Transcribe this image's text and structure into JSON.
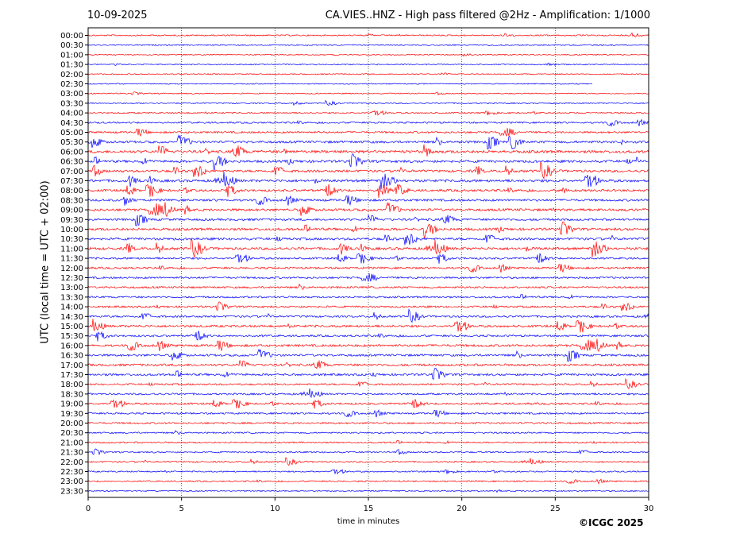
{
  "header": {
    "date": "10-09-2025",
    "title": "CA.VIES..HNZ - High pass filtered @2Hz - Amplification: 1/1000"
  },
  "footer": {
    "copyright": "©ICGC 2025"
  },
  "chart_data": {
    "type": "line",
    "title": "CA.VIES..HNZ - High pass filtered @2Hz - Amplification: 1/1000",
    "xlabel": "time in minutes",
    "ylabel": "UTC (local time = UTC + 02:00)",
    "xlim": [
      0,
      30
    ],
    "xticks": [
      0,
      5,
      10,
      15,
      20,
      25,
      30
    ],
    "x_gridlines": [
      5,
      10,
      15,
      20,
      25
    ],
    "grid": "vertical dotted",
    "trace_colors": [
      "#ff0000",
      "#0000ff"
    ],
    "rows": [
      "00:00",
      "00:30",
      "01:00",
      "01:30",
      "02:00",
      "02:30",
      "03:00",
      "03:30",
      "04:00",
      "04:30",
      "05:00",
      "05:30",
      "06:00",
      "06:30",
      "07:00",
      "07:30",
      "08:00",
      "08:30",
      "09:00",
      "09:30",
      "10:00",
      "10:30",
      "11:00",
      "11:30",
      "12:00",
      "12:30",
      "13:00",
      "13:30",
      "14:00",
      "14:30",
      "15:00",
      "15:30",
      "16:00",
      "16:30",
      "17:00",
      "17:30",
      "18:00",
      "18:30",
      "19:00",
      "19:30",
      "20:00",
      "20:30",
      "21:00",
      "21:30",
      "22:00",
      "22:30",
      "23:00",
      "23:30"
    ],
    "row_activity": [
      0.25,
      0.2,
      0.15,
      0.15,
      0.15,
      0.1,
      0.15,
      0.2,
      0.3,
      0.45,
      0.55,
      0.8,
      0.95,
      0.85,
      0.8,
      0.9,
      0.75,
      0.7,
      0.85,
      0.7,
      0.85,
      0.8,
      0.9,
      0.6,
      0.6,
      0.55,
      0.55,
      0.5,
      0.55,
      0.6,
      0.75,
      0.6,
      0.75,
      0.7,
      0.7,
      0.75,
      0.45,
      0.55,
      0.55,
      0.5,
      0.45,
      0.35,
      0.35,
      0.35,
      0.35,
      0.3,
      0.3,
      0.2
    ],
    "row_end_minute": [
      30,
      30,
      30,
      30,
      30,
      27,
      30,
      30,
      30,
      30,
      30,
      30,
      30,
      30,
      30,
      30,
      30,
      30,
      30,
      30,
      30,
      30,
      30,
      30,
      30,
      30,
      30,
      30,
      30,
      30,
      30,
      30,
      30,
      30,
      30,
      30,
      30,
      30,
      30,
      30,
      30,
      30,
      30,
      30,
      30,
      30,
      30,
      30
    ]
  }
}
